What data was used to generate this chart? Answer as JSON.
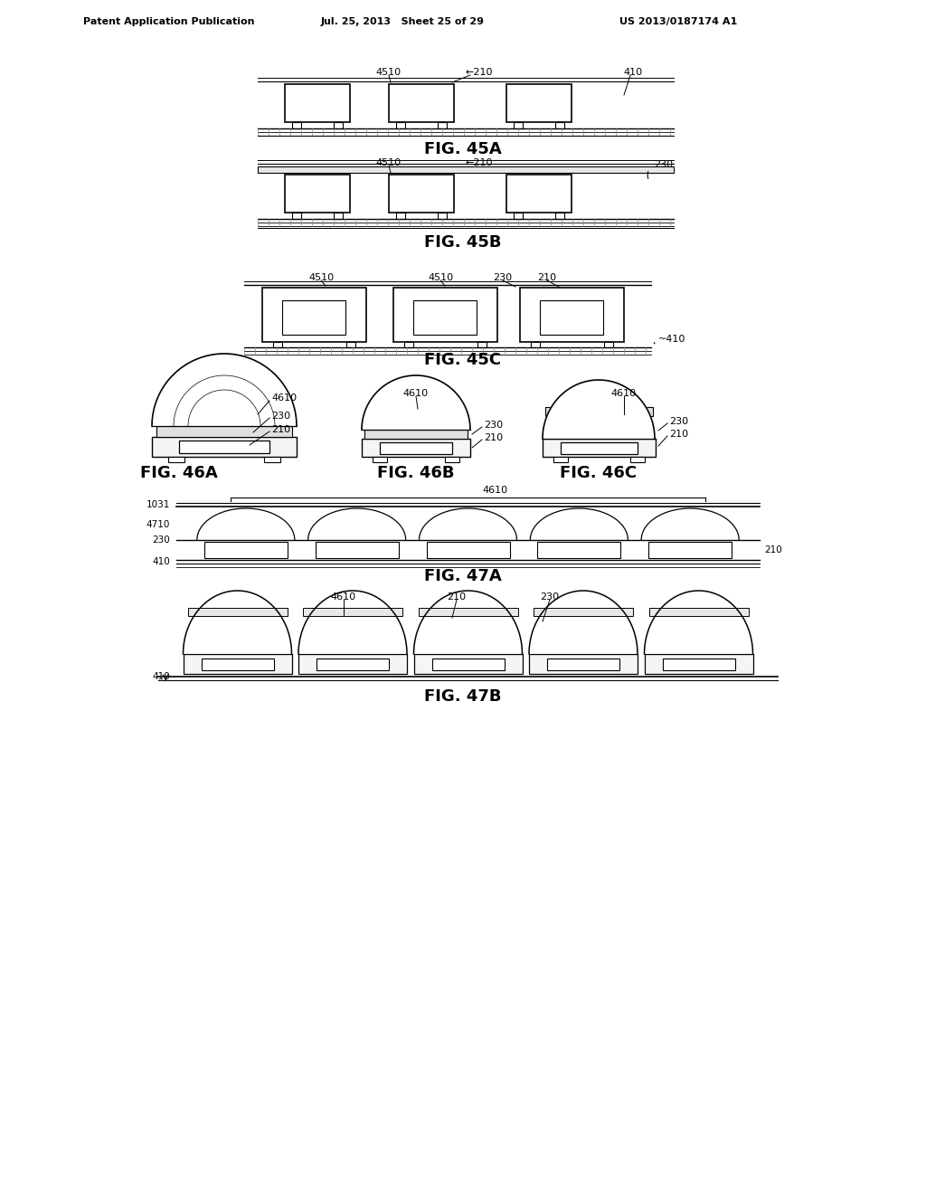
{
  "header_left": "Patent Application Publication",
  "header_mid": "Jul. 25, 2013   Sheet 25 of 29",
  "header_right": "US 2013/0187174 A1",
  "bg_color": "#ffffff"
}
